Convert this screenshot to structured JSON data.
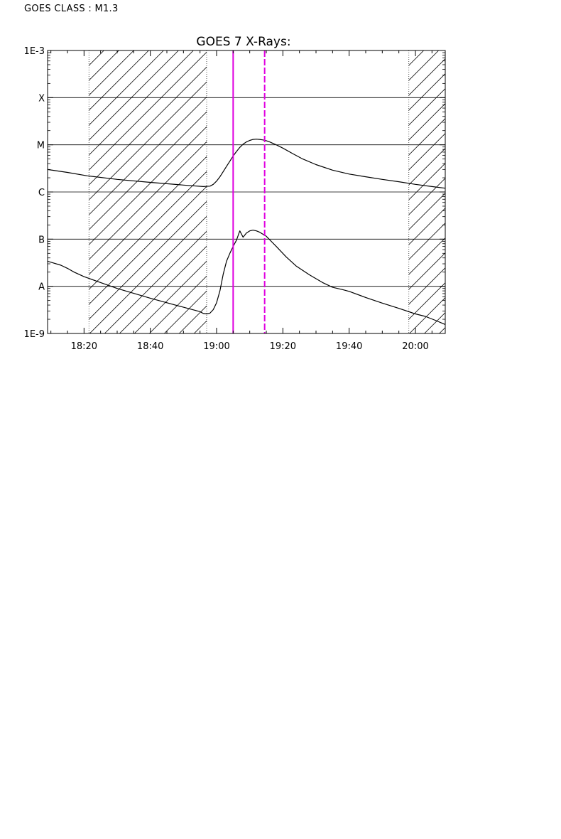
{
  "header": {
    "class_text": "GOES CLASS : M1.3"
  },
  "chart_data": {
    "type": "line",
    "title": "GOES 7 X-Rays:",
    "y_scale": "log",
    "ylim": [
      1e-09,
      0.001
    ],
    "y_tick_values": [
      1e-09,
      1e-08,
      1e-07,
      1e-06,
      1e-05,
      0.0001,
      0.001
    ],
    "y_tick_labels": [
      "1E-9",
      "A",
      "B",
      "C",
      "M",
      "X",
      "1E-3"
    ],
    "xlim": [
      "18:09",
      "20:09"
    ],
    "x_tick_labels": [
      "18:20",
      "18:40",
      "19:00",
      "19:20",
      "19:40",
      "20:00"
    ],
    "grid": "horizontal at y ticks",
    "hatched_intervals": [
      [
        "18:21.5",
        "18:57"
      ],
      [
        "19:58",
        "20:09"
      ]
    ],
    "markers": [
      {
        "time": "19:05",
        "style": "solid",
        "color": "#e000e0"
      },
      {
        "time": "19:14.5",
        "style": "dashed",
        "color": "#e000e0"
      }
    ],
    "series": [
      {
        "x": [
          "18:09",
          "18:15",
          "18:21",
          "18:30",
          "18:40",
          "18:50",
          "18:56",
          "18:58",
          "18:59",
          "19:00",
          "19:01",
          "19:02",
          "19:03",
          "19:04",
          "19:05",
          "19:06",
          "19:07",
          "19:08",
          "19:09",
          "19:10",
          "19:11",
          "19:12",
          "19:13",
          "19:14",
          "19:15",
          "19:16",
          "19:18",
          "19:20",
          "19:23",
          "19:26",
          "19:30",
          "19:35",
          "19:40",
          "19:45",
          "19:50",
          "19:55",
          "20:00",
          "20:05",
          "20:09"
        ],
        "y": [
          3e-06,
          2.6e-06,
          2.2e-06,
          1.85e-06,
          1.6e-06,
          1.4e-06,
          1.3e-06,
          1.33e-06,
          1.45e-06,
          1.7e-06,
          2.1e-06,
          2.7e-06,
          3.5e-06,
          4.5e-06,
          5.8e-06,
          7.2e-06,
          8.8e-06,
          1.03e-05,
          1.15e-05,
          1.24e-05,
          1.3e-05,
          1.32e-05,
          1.3e-05,
          1.27e-05,
          1.22e-05,
          1.15e-05,
          1e-05,
          8.5e-06,
          6.5e-06,
          5e-06,
          3.8e-06,
          2.9e-06,
          2.4e-06,
          2.1e-06,
          1.85e-06,
          1.65e-06,
          1.45e-06,
          1.3e-06,
          1.2e-06
        ]
      },
      {
        "x": [
          "18:09",
          "18:13",
          "18:15",
          "18:17",
          "18:20",
          "18:25",
          "18:30",
          "18:40",
          "18:50",
          "18:55",
          "18:56",
          "18:57",
          "18:58",
          "18:59",
          "19:00",
          "19:01",
          "19:02",
          "19:03",
          "19:04",
          "19:05",
          "19:06",
          "19:07",
          "19:08",
          "19:09",
          "19:10",
          "19:11",
          "19:12",
          "19:13",
          "19:15",
          "19:18",
          "19:21",
          "19:24",
          "19:28",
          "19:32",
          "19:35",
          "19:38",
          "19:40",
          "19:45",
          "19:50",
          "19:55",
          "20:00",
          "20:03",
          "20:06",
          "20:09"
        ],
        "y": [
          3.4e-08,
          2.8e-08,
          2.4e-08,
          2e-08,
          1.6e-08,
          1.2e-08,
          9e-09,
          5.6e-09,
          3.6e-09,
          2.9e-09,
          2.65e-09,
          2.6e-09,
          2.7e-09,
          3.2e-09,
          4.5e-09,
          8e-09,
          1.8e-08,
          3.4e-08,
          5e-08,
          7e-08,
          9.5e-08,
          1.5e-07,
          1.1e-07,
          1.35e-07,
          1.5e-07,
          1.55e-07,
          1.5e-07,
          1.4e-07,
          1.15e-07,
          7e-08,
          4.2e-08,
          2.7e-08,
          1.75e-08,
          1.2e-08,
          9.5e-09,
          8.5e-09,
          7.8e-09,
          5.8e-09,
          4.4e-09,
          3.4e-09,
          2.6e-09,
          2.3e-09,
          1.9e-09,
          1.55e-09
        ]
      }
    ]
  }
}
